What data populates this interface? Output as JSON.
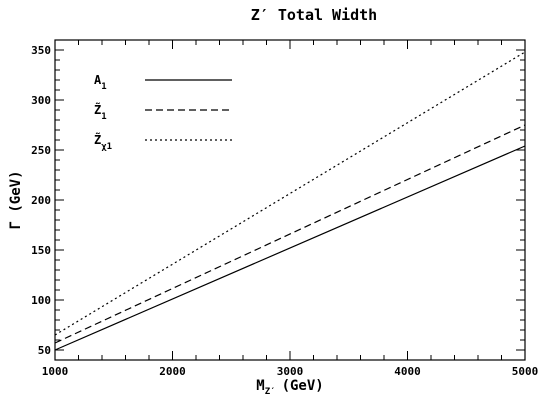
{
  "chart_data": {
    "type": "line",
    "title": "Z′ Total Width",
    "xlabel": "M",
    "xlabel_sub": "Z′",
    "xlabel_unit": "(GeV)",
    "ylabel": "Γ (GeV)",
    "xlim": [
      1000,
      5000
    ],
    "ylim": [
      40,
      360
    ],
    "x_ticks": [
      1000,
      2000,
      3000,
      4000,
      5000
    ],
    "y_ticks": [
      50,
      100,
      150,
      200,
      250,
      300,
      350
    ],
    "grid": false,
    "legend_position": "top-left",
    "series": [
      {
        "name": "A",
        "name_sub": "1",
        "style": "solid",
        "x": [
          1000,
          5000
        ],
        "y": [
          50,
          254
        ]
      },
      {
        "name": "Z̃",
        "name_sub": "1",
        "style": "dashed",
        "x": [
          1000,
          5000
        ],
        "y": [
          57,
          275
        ]
      },
      {
        "name": "Z̃",
        "name_sub": "χ1",
        "style": "dotted",
        "x": [
          1000,
          5000
        ],
        "y": [
          65,
          348
        ]
      }
    ]
  }
}
